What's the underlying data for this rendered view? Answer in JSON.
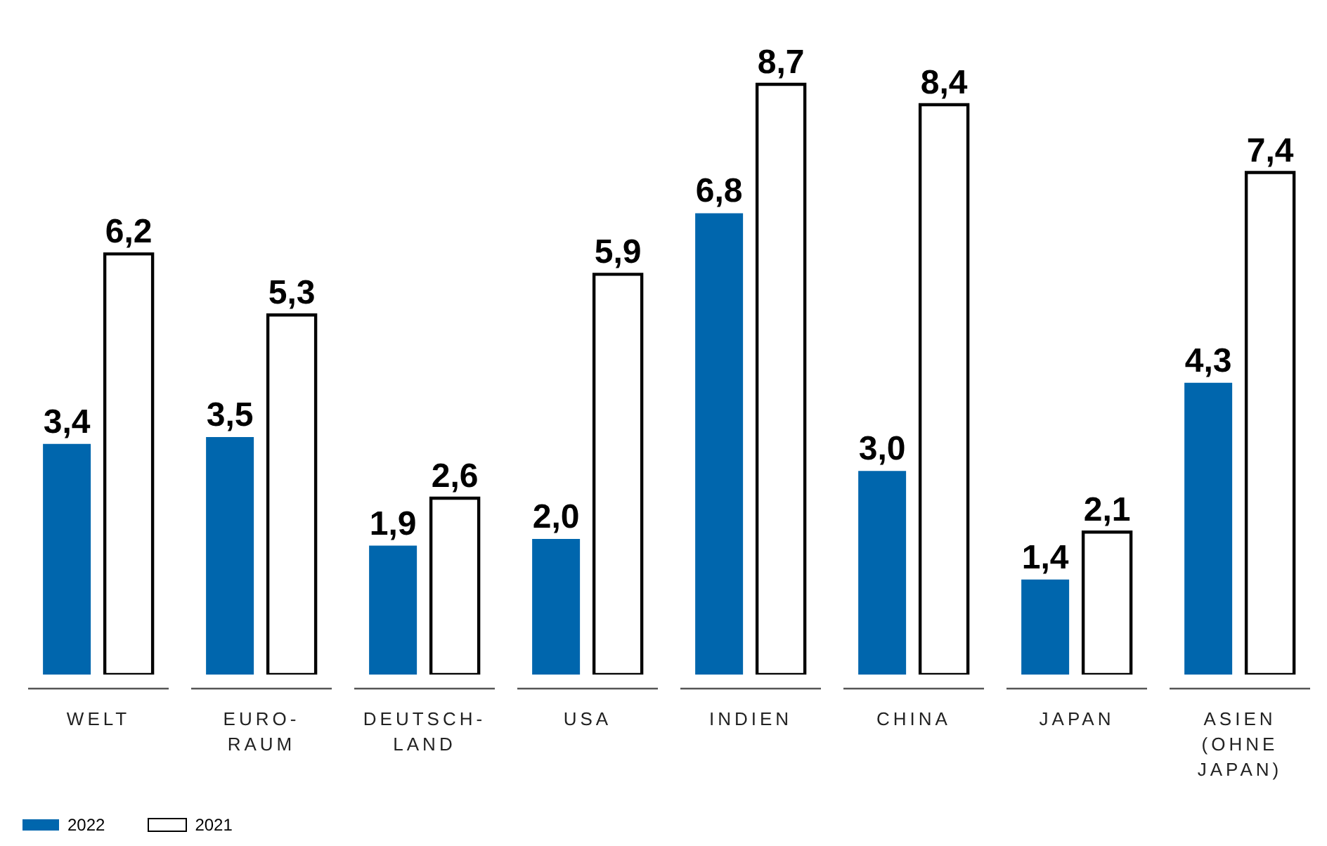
{
  "chart_data": {
    "type": "bar",
    "categories": [
      "WELT",
      "EURO-\nRAUM",
      "DEUTSCH-\nLAND",
      "USA",
      "INDIEN",
      "CHINA",
      "JAPAN",
      "ASIEN\n(OHNE\nJAPAN)"
    ],
    "series": [
      {
        "name": "2022",
        "color": "#0066ad",
        "values": [
          3.4,
          3.5,
          1.9,
          2.0,
          6.8,
          3.0,
          1.4,
          4.3
        ],
        "value_labels": [
          "3,4",
          "3,5",
          "1,9",
          "2,0",
          "6,8",
          "3,0",
          "1,4",
          "4,3"
        ]
      },
      {
        "name": "2021",
        "color": "#ffffff",
        "values": [
          6.2,
          5.3,
          2.6,
          5.9,
          8.7,
          8.4,
          2.1,
          7.4
        ],
        "value_labels": [
          "6,2",
          "5,3",
          "2,6",
          "5,9",
          "8,7",
          "8,4",
          "2,1",
          "7,4"
        ]
      }
    ],
    "legend": "bottom left"
  }
}
